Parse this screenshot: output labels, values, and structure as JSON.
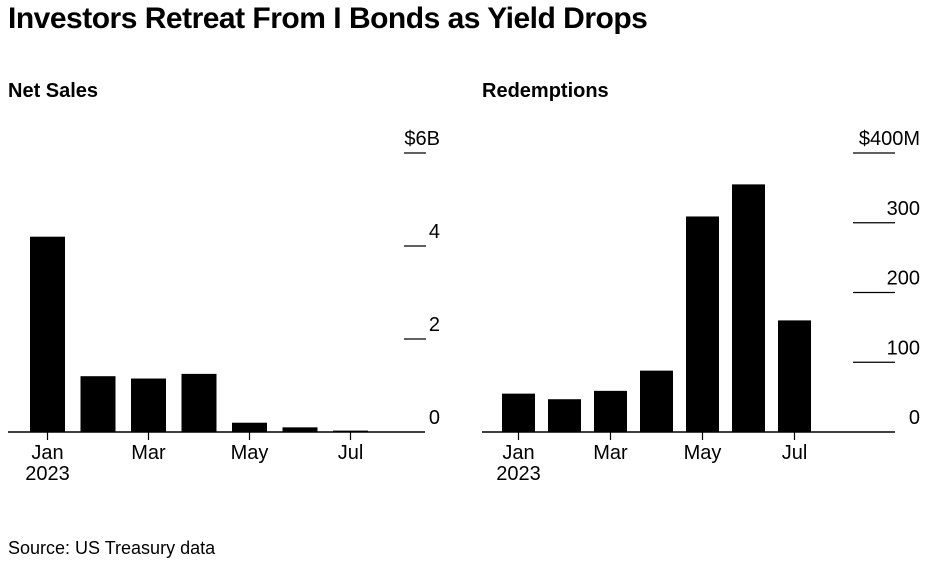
{
  "headline": "Investors Retreat From I Bonds as Yield Drops",
  "source": "Source: US Treasury data",
  "chart_data": [
    {
      "type": "bar",
      "title": "Net Sales",
      "unit_prefix": "$",
      "unit_suffix": "B",
      "categories": [
        "Jan",
        "Feb",
        "Mar",
        "Apr",
        "May",
        "Jun",
        "Jul"
      ],
      "x_tick_labels": [
        {
          "label": "Jan",
          "sublabel": "2023",
          "category": "Jan"
        },
        {
          "label": "Mar",
          "category": "Mar"
        },
        {
          "label": "May",
          "category": "May"
        },
        {
          "label": "Jul",
          "category": "Jul"
        }
      ],
      "values": [
        4.2,
        1.2,
        1.15,
        1.25,
        0.2,
        0.1,
        0.03
      ],
      "ylim": [
        0,
        6
      ],
      "yticks": [
        0,
        2,
        4,
        6
      ],
      "ytick_labels": [
        "0",
        "2",
        "4",
        "$6B"
      ],
      "grid": false,
      "bar_color": "#000000"
    },
    {
      "type": "bar",
      "title": "Redemptions",
      "unit_prefix": "$",
      "unit_suffix": "M",
      "categories": [
        "Jan",
        "Feb",
        "Mar",
        "Apr",
        "May",
        "Jun",
        "Jul"
      ],
      "x_tick_labels": [
        {
          "label": "Jan",
          "sublabel": "2023",
          "category": "Jan"
        },
        {
          "label": "Mar",
          "category": "Mar"
        },
        {
          "label": "May",
          "category": "May"
        },
        {
          "label": "Jul",
          "category": "Jul"
        }
      ],
      "values": [
        55,
        47,
        59,
        88,
        309,
        355,
        160
      ],
      "ylim": [
        0,
        400
      ],
      "yticks": [
        0,
        100,
        200,
        300,
        400
      ],
      "ytick_labels": [
        "0",
        "100",
        "200",
        "300",
        "$400M"
      ],
      "grid": false,
      "bar_color": "#000000"
    }
  ]
}
